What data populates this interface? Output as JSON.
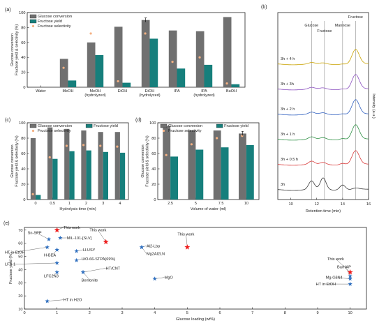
{
  "colors": {
    "conversion": "#707070",
    "yield": "#167f7c",
    "selectivity": "#f4b183",
    "star_red": "#ee1c1c",
    "star_blue": "#2f6fbf",
    "axis": "#222222",
    "trace_colors": [
      "#3a3a3a",
      "#d93a3a",
      "#2d8f43",
      "#2f5fbf",
      "#8a4fbf",
      "#c9a200"
    ]
  },
  "chart_data": [
    {
      "id": "a",
      "panel_label": "(a)",
      "type": "bar",
      "ylabel": "Glucose conversion\nFructose yield & selectivity (%)",
      "ylim": [
        0,
        100
      ],
      "yticks": [
        0,
        20,
        40,
        60,
        80,
        100
      ],
      "categories": [
        "Water",
        "MeOH",
        "MeOH\n(hydrolyzed)",
        "EtOH",
        "EtOH\n(hydrolyzed)",
        "IPA",
        "IPA\n(hydrolyzed)",
        "BuOH"
      ],
      "series": [
        {
          "name": "Glucose conversion",
          "kind": "bar",
          "values": [
            0,
            38,
            60,
            81,
            90,
            76,
            75,
            94
          ]
        },
        {
          "name": "Fructose yield",
          "kind": "bar",
          "values": [
            0,
            9,
            43,
            6,
            65,
            25,
            30,
            4
          ]
        },
        {
          "name": "Fructose selectivity",
          "kind": "dot",
          "values": [
            null,
            26,
            72,
            8,
            72,
            34,
            40,
            5
          ]
        }
      ],
      "error_bar_on": [
        4
      ],
      "legend": "top-left"
    },
    {
      "id": "b",
      "panel_label": "(b)",
      "type": "line",
      "xlabel": "Retention time (min)",
      "ylabel": "Intensity (a.u.)",
      "xlim": [
        9,
        16
      ],
      "xticks": [
        10,
        12,
        14,
        16
      ],
      "peak_labels": [
        "Glucose",
        "Fructose",
        "Mannose",
        "Fructose"
      ],
      "peak_x": [
        11.6,
        12.6,
        14.0,
        15.0
      ],
      "series": [
        {
          "name": "3h",
          "peaks": [
            [
              11.6,
              0.55
            ],
            [
              12.5,
              0.75
            ],
            [
              14.0,
              0.35
            ],
            [
              15.0,
              0.1
            ]
          ]
        },
        {
          "name": "3h + 0.5 h",
          "peaks": [
            [
              11.6,
              0.2
            ],
            [
              12.5,
              0.12
            ],
            [
              14.0,
              0.12
            ],
            [
              15.0,
              0.9
            ]
          ]
        },
        {
          "name": "3h + 1 h",
          "peaks": [
            [
              11.6,
              0.15
            ],
            [
              12.5,
              0.1
            ],
            [
              14.0,
              0.1
            ],
            [
              15.0,
              0.95
            ]
          ]
        },
        {
          "name": "3h + 2 h",
          "peaks": [
            [
              11.6,
              0.12
            ],
            [
              12.5,
              0.08
            ],
            [
              14.0,
              0.08
            ],
            [
              15.0,
              0.95
            ]
          ]
        },
        {
          "name": "3h + 3h",
          "peaks": [
            [
              11.6,
              0.1
            ],
            [
              12.5,
              0.07
            ],
            [
              14.0,
              0.06
            ],
            [
              15.0,
              0.95
            ]
          ]
        },
        {
          "name": "3h + 4 h",
          "peaks": [
            [
              11.6,
              0.08
            ],
            [
              12.5,
              0.06
            ],
            [
              14.0,
              0.05
            ],
            [
              15.0,
              0.95
            ]
          ]
        }
      ]
    },
    {
      "id": "c",
      "panel_label": "(c)",
      "type": "bar",
      "xlabel": "Hydrolysis time (min)",
      "ylabel": "Glucose conversion\nFructose yield & selectivity (%)",
      "ylim": [
        0,
        100
      ],
      "yticks": [
        0,
        20,
        40,
        60,
        80,
        100
      ],
      "categories": [
        "0",
        "0.5",
        "1",
        "2",
        "3",
        "4"
      ],
      "series": [
        {
          "name": "Glucose conversion",
          "kind": "bar",
          "values": [
            80,
            94,
            92,
            90,
            88,
            88
          ]
        },
        {
          "name": "Fructose yield",
          "kind": "bar",
          "values": [
            6,
            53,
            63,
            64,
            62,
            61
          ]
        },
        {
          "name": "Fructose selectivity",
          "kind": "dot",
          "values": [
            7,
            55,
            70,
            71,
            70,
            69
          ]
        }
      ],
      "legend": "top"
    },
    {
      "id": "d",
      "panel_label": "(d)",
      "type": "bar",
      "xlabel": "Volume of water (ml)",
      "ylabel": "Glucose conversion\nFructose yield & selectivity (%)",
      "ylim": [
        0,
        100
      ],
      "yticks": [
        0,
        20,
        40,
        60,
        80,
        100
      ],
      "categories": [
        "2.5",
        "5",
        "7.5",
        "10"
      ],
      "series": [
        {
          "name": "Glucose conversion",
          "kind": "bar",
          "values": [
            96,
            90,
            90,
            86
          ]
        },
        {
          "name": "Fructose yield",
          "kind": "bar",
          "values": [
            56,
            65,
            68,
            71
          ]
        },
        {
          "name": "Fructose selectivity",
          "kind": "dot",
          "values": [
            58,
            72,
            80,
            83
          ]
        }
      ],
      "error_bar_on": [
        3
      ],
      "legend": "top"
    },
    {
      "id": "e",
      "panel_label": "(e)",
      "type": "scatter",
      "xlabel": "Glucose loading (wt%)",
      "ylabel": "Fructose yield (%)",
      "xlim": [
        0,
        10.5
      ],
      "ylim": [
        10,
        72
      ],
      "xticks": [
        0,
        1,
        2,
        3,
        4,
        5,
        6,
        7,
        8,
        9,
        10
      ],
      "yticks": [
        10,
        20,
        30,
        40,
        50,
        60,
        70
      ],
      "points": [
        {
          "label": "This work",
          "x": 1.0,
          "y": 70,
          "marker": "red",
          "lx": 1.2,
          "ly": 71
        },
        {
          "label": "This work",
          "x": 2.5,
          "y": 61,
          "marker": "red",
          "lx": 2.0,
          "ly": 69
        },
        {
          "label": "This work",
          "x": 5.0,
          "y": 57,
          "marker": "red",
          "lx": 4.7,
          "ly": 66
        },
        {
          "label": "This work",
          "x": 10.0,
          "y": 38,
          "marker": "red",
          "lx": 9.3,
          "ly": 47
        },
        {
          "label": "Sn-SPP",
          "x": 0.75,
          "y": 63,
          "marker": "blue",
          "lx": 0.1,
          "ly": 67
        },
        {
          "label": "MIL-101-[SLV]",
          "x": 1.1,
          "y": 64,
          "marker": "blue",
          "lx": 1.3,
          "ly": 63
        },
        {
          "label": "HT in EtOH",
          "x": 0.7,
          "y": 57,
          "marker": "blue",
          "lx": -0.6,
          "ly": 52
        },
        {
          "label": "H-BEA",
          "x": 1.0,
          "y": 55,
          "marker": "blue",
          "lx": 0.6,
          "ly": 50
        },
        {
          "label": "H-USY",
          "x": 1.6,
          "y": 54,
          "marker": "blue",
          "lx": 1.8,
          "ly": 54
        },
        {
          "label": "LFS-1",
          "x": 1.0,
          "y": 45,
          "marker": "blue",
          "lx": -0.6,
          "ly": 43
        },
        {
          "label": "UiO-66-STPA(69%)",
          "x": 1.6,
          "y": 47,
          "marker": "blue",
          "lx": 1.75,
          "ly": 47
        },
        {
          "label": "LFC2N3",
          "x": 1.0,
          "y": 38,
          "marker": "blue",
          "lx": 0.6,
          "ly": 34
        },
        {
          "label": "HT/CNT",
          "x": 1.8,
          "y": 38,
          "marker": "blue",
          "lx": 2.5,
          "ly": 40
        },
        {
          "label": "Bentonite",
          "x": 1.8,
          "y": 38,
          "marker": "blue",
          "lx": 1.75,
          "ly": 31
        },
        {
          "label": "Al2-Lbp",
          "x": 3.6,
          "y": 57,
          "marker": "blue",
          "lx": 3.75,
          "ly": 57
        },
        {
          "label": "Mg2Al2LN",
          "x": 3.6,
          "y": 57,
          "marker": "blue",
          "lx": 3.75,
          "ly": 51
        },
        {
          "label": "MgO",
          "x": 4.0,
          "y": 33,
          "marker": "blue",
          "lx": 4.3,
          "ly": 33
        },
        {
          "label": "Ba/HAP",
          "x": 10.0,
          "y": 35,
          "marker": "blue",
          "lx": 9.6,
          "ly": 41
        },
        {
          "label": "Mg-C2N4",
          "x": 10.0,
          "y": 33,
          "marker": "blue",
          "lx": 9.25,
          "ly": 33
        },
        {
          "label": "HT in EtOH",
          "x": 10.0,
          "y": 29,
          "marker": "blue",
          "lx": 8.95,
          "ly": 28
        },
        {
          "label": "HT in H2O",
          "x": 0.7,
          "y": 16,
          "marker": "blue",
          "lx": 1.2,
          "ly": 16
        }
      ]
    }
  ]
}
